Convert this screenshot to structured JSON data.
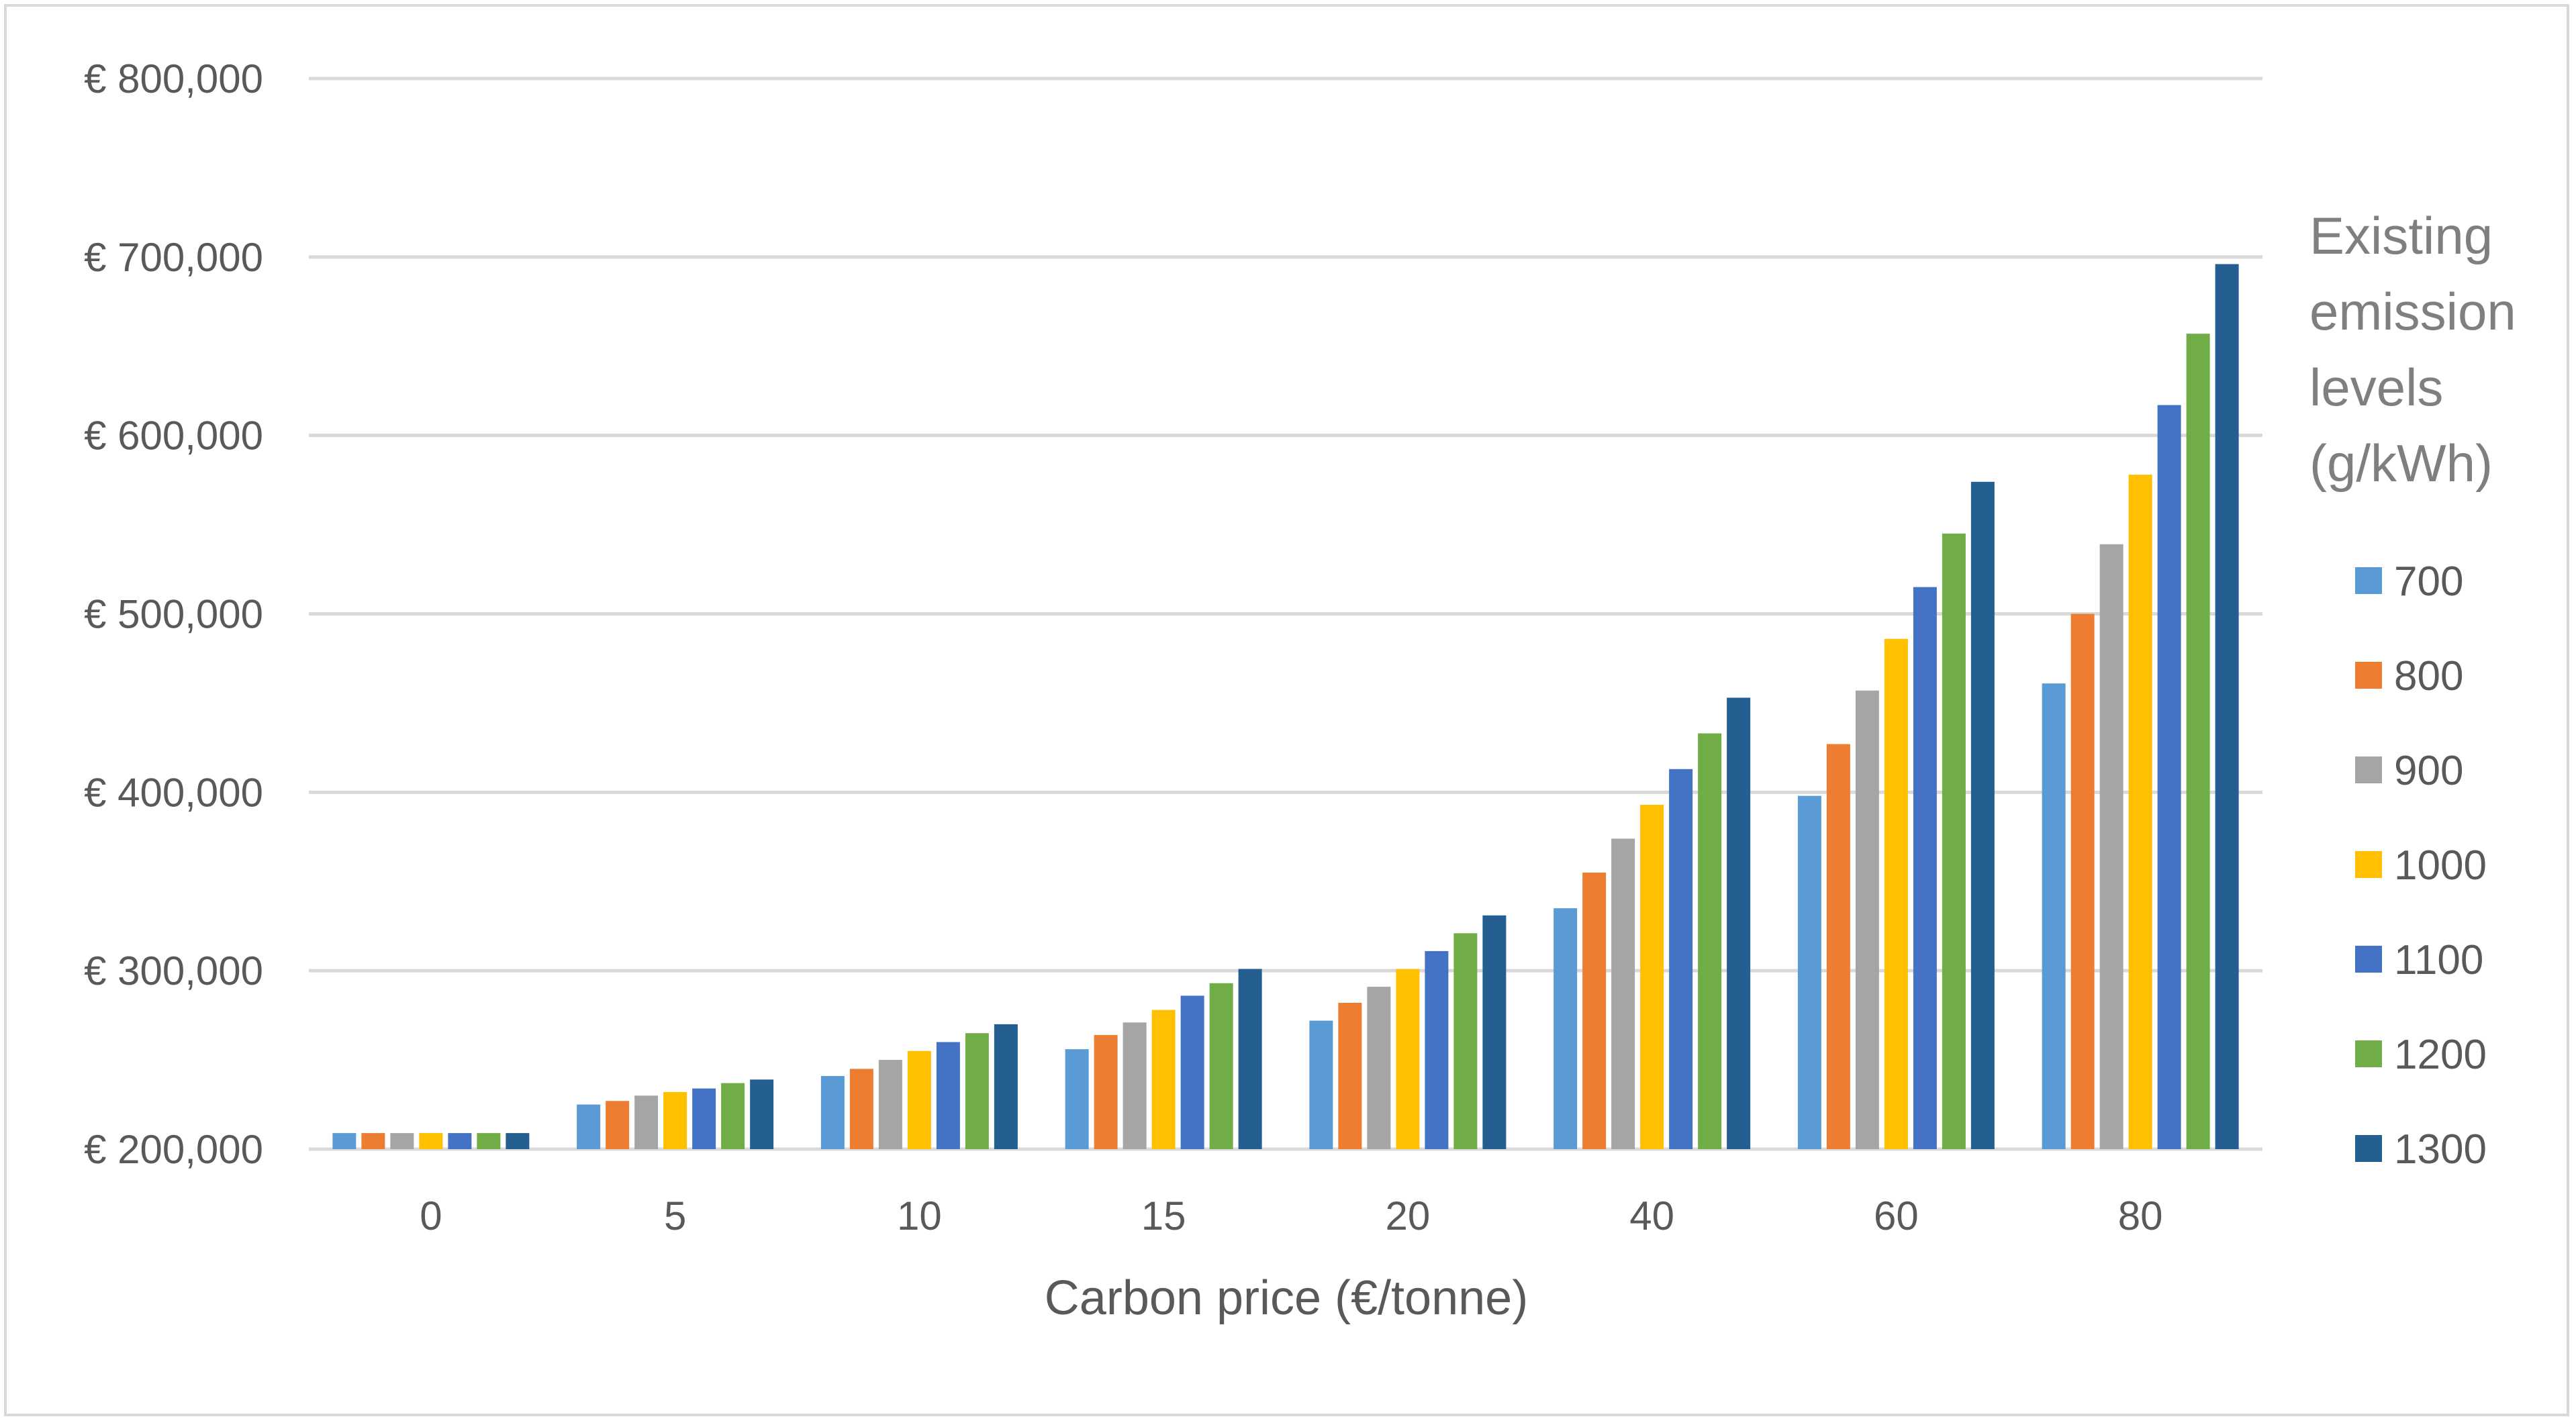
{
  "chart_data": {
    "type": "bar",
    "title": "",
    "xlabel": "Carbon price (€/tonne)",
    "ylabel": "",
    "categories": [
      "0",
      "5",
      "10",
      "15",
      "20",
      "40",
      "60",
      "80"
    ],
    "ylim": [
      200000,
      800000
    ],
    "yticks": [
      200000,
      300000,
      400000,
      500000,
      600000,
      700000,
      800000
    ],
    "ytick_labels": [
      "€ 200,000",
      "€ 300,000",
      "€ 400,000",
      "€ 500,000",
      "€ 600,000",
      "€ 700,000",
      "€ 800,000"
    ],
    "grid": true,
    "legend_title_lines": [
      "Existing",
      "emission",
      "levels",
      "(g/kWh)"
    ],
    "legend_position": "right",
    "series": [
      {
        "name": "700",
        "color": "#5b9bd5",
        "values": [
          209000,
          225000,
          241000,
          256000,
          272000,
          335000,
          398000,
          461000
        ]
      },
      {
        "name": "800",
        "color": "#ed7d31",
        "values": [
          209000,
          227000,
          245000,
          264000,
          282000,
          355000,
          427000,
          500000
        ]
      },
      {
        "name": "900",
        "color": "#a5a5a5",
        "values": [
          209000,
          230000,
          250000,
          271000,
          291000,
          374000,
          457000,
          539000
        ]
      },
      {
        "name": "1000",
        "color": "#ffc000",
        "values": [
          209000,
          232000,
          255000,
          278000,
          301000,
          393000,
          486000,
          578000
        ]
      },
      {
        "name": "1100",
        "color": "#4472c4",
        "values": [
          209000,
          234000,
          260000,
          286000,
          311000,
          413000,
          515000,
          617000
        ]
      },
      {
        "name": "1200",
        "color": "#70ad47",
        "values": [
          209000,
          237000,
          265000,
          293000,
          321000,
          433000,
          545000,
          657000
        ]
      },
      {
        "name": "1300",
        "color": "#255e91",
        "values": [
          209000,
          239000,
          270000,
          301000,
          331000,
          453000,
          574000,
          696000
        ]
      }
    ]
  }
}
